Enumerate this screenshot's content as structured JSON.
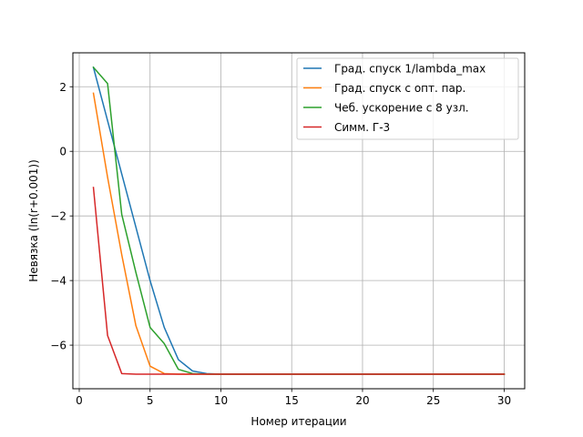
{
  "chart_data": {
    "type": "line",
    "title": "",
    "xlabel": "Номер итерации",
    "ylabel": "Невязка (ln(r+0.001))",
    "xlim": [
      -0.45,
      31.45
    ],
    "ylim": [
      -7.35,
      3.05
    ],
    "xticks": [
      0,
      5,
      10,
      15,
      20,
      25,
      30
    ],
    "xtick_labels": [
      "0",
      "5",
      "10",
      "15",
      "20",
      "25",
      "30"
    ],
    "yticks": [
      2,
      0,
      -2,
      -4,
      -6
    ],
    "ytick_labels": [
      "2",
      "0",
      "−2",
      "−4",
      "−6"
    ],
    "grid": true,
    "legend_position": "top-right",
    "x": [
      1,
      2,
      3,
      4,
      5,
      6,
      7,
      8,
      9,
      10,
      11,
      12,
      13,
      14,
      15,
      16,
      17,
      18,
      19,
      20,
      21,
      22,
      23,
      24,
      25,
      26,
      27,
      28,
      29,
      30
    ],
    "series": [
      {
        "name": "Град. спуск 1/lambda_max",
        "color": "#1f77b4",
        "values": [
          2.6,
          0.95,
          -0.7,
          -2.35,
          -4.0,
          -5.45,
          -6.45,
          -6.8,
          -6.88,
          -6.9,
          -6.9,
          -6.9,
          -6.9,
          -6.9,
          -6.9,
          -6.9,
          -6.9,
          -6.9,
          -6.9,
          -6.9,
          -6.9,
          -6.9,
          -6.9,
          -6.9,
          -6.9,
          -6.9,
          -6.9,
          -6.9,
          -6.9,
          -6.9
        ]
      },
      {
        "name": "Град. спуск с опт. пар.",
        "color": "#ff7f0e",
        "values": [
          1.8,
          -0.8,
          -3.2,
          -5.4,
          -6.65,
          -6.88,
          -6.9,
          -6.9,
          -6.9,
          -6.9,
          -6.9,
          -6.9,
          -6.9,
          -6.9,
          -6.9,
          -6.9,
          -6.9,
          -6.9,
          -6.9,
          -6.9,
          -6.9,
          -6.9,
          -6.9,
          -6.9,
          -6.9,
          -6.9,
          -6.9,
          -6.9,
          -6.9,
          -6.9
        ]
      },
      {
        "name": "Чеб. ускорение с 8 узл.",
        "color": "#2ca02c",
        "values": [
          2.6,
          2.1,
          -1.95,
          -3.75,
          -5.45,
          -5.95,
          -6.75,
          -6.88,
          -6.9,
          -6.9,
          -6.9,
          -6.9,
          -6.9,
          -6.9,
          -6.9,
          -6.9,
          -6.9,
          -6.9,
          -6.9,
          -6.9,
          -6.9,
          -6.9,
          -6.9,
          -6.9,
          -6.9,
          -6.9,
          -6.9,
          -6.9,
          -6.9,
          -6.9
        ]
      },
      {
        "name": "Симм. Г-3",
        "color": "#d62728",
        "values": [
          -1.12,
          -5.7,
          -6.88,
          -6.9,
          -6.9,
          -6.9,
          -6.9,
          -6.9,
          -6.9,
          -6.9,
          -6.9,
          -6.9,
          -6.9,
          -6.9,
          -6.9,
          -6.9,
          -6.9,
          -6.9,
          -6.9,
          -6.9,
          -6.9,
          -6.9,
          -6.9,
          -6.9,
          -6.9,
          -6.9,
          -6.9,
          -6.9,
          -6.9,
          -6.9
        ]
      }
    ]
  }
}
